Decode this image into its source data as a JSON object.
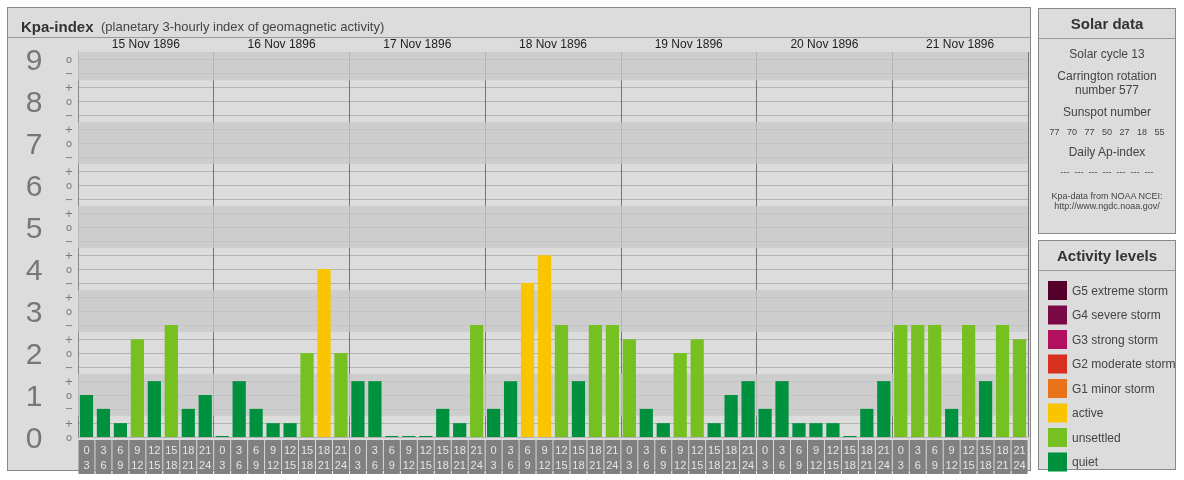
{
  "chart_data": [
    {
      "type": "bar",
      "title": "Kpa-index",
      "subtitle": "(planetary 3-hourly index of geomagnetic activity)",
      "categories": [
        "0\n3",
        "3\n6",
        "6\n9",
        "9\n12",
        "12\n15",
        "15\n18",
        "18\n21",
        "21\n24",
        "0\n3",
        "3\n6",
        "6\n9",
        "9\n12",
        "12\n15",
        "15\n18",
        "18\n21",
        "21\n24",
        "0\n3",
        "3\n6",
        "6\n9",
        "9\n12",
        "12\n15",
        "15\n18",
        "18\n21",
        "21\n24",
        "0\n3",
        "3\n6",
        "6\n9",
        "9\n12",
        "12\n15",
        "15\n18",
        "18\n21",
        "21\n24",
        "0\n3",
        "3\n6",
        "6\n9",
        "9\n12",
        "12\n15",
        "15\n18",
        "18\n21",
        "21\n24",
        "0\n3",
        "3\n6",
        "6\n9",
        "9\n12",
        "12\n15",
        "15\n18",
        "18\n21",
        "21\n24",
        "0\n3",
        "3\n6",
        "6\n9",
        "9\n12",
        "12\n15",
        "15\n18",
        "18\n21",
        "21\n24"
      ],
      "series": [
        {
          "name": "G5 extreme storm",
          "color": "#55002b",
          "values": [
            null,
            null,
            null,
            null,
            null,
            null,
            null,
            null,
            null,
            null,
            null,
            null,
            null,
            null,
            null,
            null,
            null,
            null,
            null,
            null,
            null,
            null,
            null,
            null,
            null,
            null,
            null,
            null,
            null,
            null,
            null,
            null,
            null,
            null,
            null,
            null,
            null,
            null,
            null,
            null,
            null,
            null,
            null,
            null,
            null,
            null,
            null,
            null,
            null,
            null,
            null,
            null,
            null,
            null,
            null,
            null
          ]
        },
        {
          "name": "G4 severe storm",
          "color": "#7a0a45",
          "values": [
            null,
            null,
            null,
            null,
            null,
            null,
            null,
            null,
            null,
            null,
            null,
            null,
            null,
            null,
            null,
            null,
            null,
            null,
            null,
            null,
            null,
            null,
            null,
            null,
            null,
            null,
            null,
            null,
            null,
            null,
            null,
            null,
            null,
            null,
            null,
            null,
            null,
            null,
            null,
            null,
            null,
            null,
            null,
            null,
            null,
            null,
            null,
            null,
            null,
            null,
            null,
            null,
            null,
            null,
            null,
            null
          ]
        },
        {
          "name": "G3 strong storm",
          "color": "#b0105e",
          "values": [
            null,
            null,
            null,
            null,
            null,
            null,
            null,
            null,
            null,
            null,
            null,
            null,
            null,
            null,
            null,
            null,
            null,
            null,
            null,
            null,
            null,
            null,
            null,
            null,
            null,
            null,
            null,
            null,
            null,
            null,
            null,
            null,
            null,
            null,
            null,
            null,
            null,
            null,
            null,
            null,
            null,
            null,
            null,
            null,
            null,
            null,
            null,
            null,
            null,
            null,
            null,
            null,
            null,
            null,
            null,
            null
          ]
        },
        {
          "name": "G2 moderate storm",
          "color": "#d8301e",
          "values": [
            null,
            null,
            null,
            null,
            null,
            null,
            null,
            null,
            null,
            null,
            null,
            null,
            null,
            null,
            null,
            null,
            null,
            null,
            null,
            null,
            null,
            null,
            null,
            null,
            null,
            null,
            null,
            null,
            null,
            null,
            null,
            null,
            null,
            null,
            null,
            null,
            null,
            null,
            null,
            null,
            null,
            null,
            null,
            null,
            null,
            null,
            null,
            null,
            null,
            null,
            null,
            null,
            null,
            null,
            null,
            null
          ]
        },
        {
          "name": "G1 minor storm",
          "color": "#e8731a",
          "values": [
            null,
            null,
            null,
            null,
            null,
            null,
            null,
            null,
            null,
            null,
            null,
            null,
            null,
            null,
            null,
            null,
            null,
            null,
            null,
            null,
            null,
            null,
            null,
            null,
            null,
            null,
            null,
            null,
            null,
            null,
            null,
            null,
            null,
            null,
            null,
            null,
            null,
            null,
            null,
            null,
            null,
            null,
            null,
            null,
            null,
            null,
            null,
            null,
            null,
            null,
            null,
            null,
            null,
            null,
            null,
            null
          ]
        },
        {
          "name": "active",
          "color": "#f9c500",
          "values": [
            null,
            null,
            null,
            null,
            null,
            null,
            null,
            null,
            null,
            null,
            null,
            null,
            null,
            null,
            4,
            null,
            null,
            null,
            null,
            null,
            null,
            null,
            null,
            null,
            null,
            null,
            3.67,
            4.33,
            null,
            null,
            null,
            null,
            null,
            null,
            null,
            null,
            null,
            null,
            null,
            null,
            null,
            null,
            null,
            null,
            null,
            null,
            null,
            null,
            null,
            null,
            null,
            null,
            null,
            null,
            null,
            null
          ]
        },
        {
          "name": "unsettled",
          "color": "#77c022",
          "values": [
            null,
            null,
            null,
            2.33,
            null,
            2.67,
            null,
            null,
            null,
            null,
            null,
            null,
            null,
            2,
            null,
            2,
            null,
            null,
            null,
            null,
            null,
            null,
            null,
            2.67,
            null,
            null,
            null,
            null,
            2.67,
            null,
            2.67,
            2.67,
            2.33,
            null,
            null,
            2,
            2.33,
            null,
            null,
            null,
            null,
            null,
            null,
            null,
            null,
            null,
            null,
            null,
            2.67,
            2.67,
            2.67,
            null,
            2.67,
            null,
            2.67,
            2.33
          ]
        },
        {
          "name": "quiet",
          "color": "#00913f",
          "values": [
            1,
            0.67,
            0.33,
            null,
            1.33,
            null,
            0.67,
            1,
            0,
            1.33,
            0.67,
            0.33,
            0.33,
            null,
            null,
            null,
            1.33,
            1.33,
            0,
            0,
            0,
            0.67,
            0.33,
            null,
            0.67,
            1.33,
            null,
            null,
            null,
            1.33,
            null,
            null,
            null,
            0.67,
            0.33,
            null,
            null,
            0.33,
            1,
            1.33,
            0.67,
            1.33,
            0.33,
            0.33,
            0.33,
            0,
            0.67,
            1.33,
            null,
            null,
            null,
            0.67,
            null,
            1.33,
            null,
            null
          ]
        }
      ],
      "annotations": [
        "15 Nov 1896",
        "16 Nov 1896",
        "17 Nov 1896",
        "18 Nov 1896",
        "19 Nov 1896",
        "20 Nov 1896",
        "21 Nov 1896",
        "o",
        "+",
        "−",
        "o",
        "+",
        "−",
        "o",
        "+",
        "−",
        "o",
        "+",
        "−",
        "o",
        "+",
        "−",
        "o",
        "+",
        "−",
        "o",
        "+",
        "−",
        "o",
        "+",
        "−",
        "o",
        "+",
        "−",
        "o"
      ],
      "ylim": [
        0,
        9.17
      ],
      "yticks": [
        0,
        {
          "value": 0.333,
          "label": null
        },
        {
          "value": 0.667,
          "label": null
        },
        1,
        {
          "value": 1.333,
          "label": null
        },
        {
          "value": 1.667,
          "label": null
        },
        2,
        {
          "value": 2.333,
          "label": null
        },
        {
          "value": 2.667,
          "label": null
        },
        3,
        {
          "value": 3.333,
          "label": null
        },
        {
          "value": 3.667,
          "label": null
        },
        4,
        {
          "value": 4.333,
          "label": null
        },
        {
          "value": 4.667,
          "label": null
        },
        5,
        {
          "value": 5.333,
          "label": null
        },
        {
          "value": 5.667,
          "label": null
        },
        6,
        {
          "value": 6.333,
          "label": null
        },
        {
          "value": 6.667,
          "label": null
        },
        7,
        {
          "value": 7.333,
          "label": null
        },
        {
          "value": 7.667,
          "label": null
        },
        8,
        {
          "value": 8.333,
          "label": null
        },
        {
          "value": 8.667,
          "label": null
        },
        9
      ],
      "bands": [
        {
          "axis": "y",
          "from": 0.5,
          "to": 1.5,
          "color": "#c8c8c8"
        },
        {
          "axis": "y",
          "from": 2.5,
          "to": 3.5,
          "color": "#c8c8c8"
        },
        {
          "axis": "y",
          "from": 4.5,
          "to": 5.5,
          "color": "#c8c8c8"
        },
        {
          "axis": "y",
          "from": 6.5,
          "to": 7.5,
          "color": "#c8c8c8"
        },
        {
          "axis": "y",
          "from": 8.5,
          "to": 9.17,
          "color": "#c8c8c8"
        }
      ],
      "grid": true,
      "legend": "right",
      "legend_title": "Activity levels"
    },
    {
      "type": "other",
      "title": "Solar data",
      "annotations": [
        "Solar cycle 13",
        "Carrington rotation number 577",
        "Sunspot number",
        "77   70   77   50   27   18   55",
        "Daily Ap-index",
        "---  ---  ---  ---  ---  ---  ---",
        "Kpa-data from NOAA NCEI: http://www.ngdc.noaa.gov/"
      ]
    }
  ]
}
